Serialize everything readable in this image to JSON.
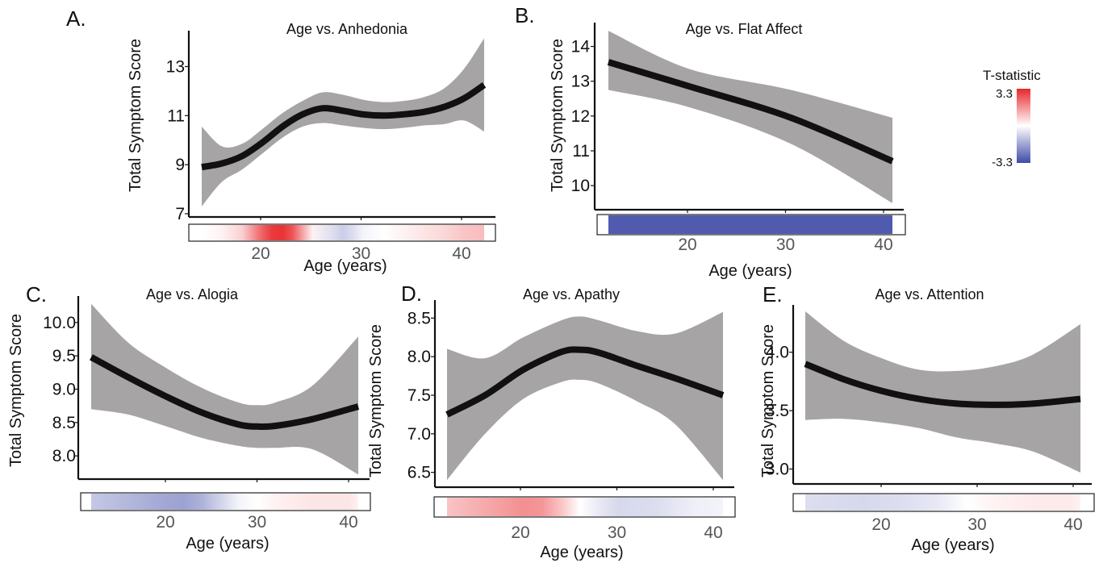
{
  "legend": {
    "title": "T-statistic",
    "max_label": "3.3",
    "min_label": "-3.3",
    "colors": {
      "high": "#e8262a",
      "mid": "#ffffff",
      "low": "#3f4aa6"
    }
  },
  "colors": {
    "ribbon": "#a6a4a4",
    "line": "#111111"
  },
  "chart_data": [
    {
      "panel": "A.",
      "type": "line",
      "title": "Age vs. Anhedonia",
      "ylabel": "Total Symptom Score",
      "xlabel": "Age (years)",
      "yticks": [
        "7",
        "9",
        "11",
        "13"
      ],
      "xticks": [
        "20",
        "30",
        "40"
      ],
      "xlim": [
        12,
        42
      ],
      "ylim": [
        7,
        14.2
      ],
      "x": [
        14,
        16,
        18,
        20,
        22,
        24,
        26,
        28,
        30,
        32,
        34,
        36,
        38,
        40,
        42
      ],
      "fit": [
        8.9,
        9.05,
        9.35,
        9.9,
        10.55,
        11.05,
        11.3,
        11.2,
        11.05,
        11.0,
        11.05,
        11.15,
        11.35,
        11.7,
        12.25
      ],
      "lower": [
        7.3,
        8.3,
        8.8,
        9.45,
        10.1,
        10.55,
        10.7,
        10.6,
        10.5,
        10.45,
        10.5,
        10.6,
        10.65,
        10.8,
        10.35
      ],
      "upper": [
        10.55,
        9.75,
        9.85,
        10.45,
        11.1,
        11.6,
        11.95,
        11.85,
        11.65,
        11.55,
        11.6,
        11.75,
        12.1,
        12.9,
        14.15
      ],
      "tstat": [
        [
          14,
          0
        ],
        [
          16,
          0.2
        ],
        [
          18,
          0.7
        ],
        [
          20,
          2.4
        ],
        [
          21,
          3.0
        ],
        [
          22,
          3.1
        ],
        [
          23,
          2.6
        ],
        [
          24,
          1.4
        ],
        [
          25,
          0.2
        ],
        [
          27,
          -0.6
        ],
        [
          28,
          -0.9
        ],
        [
          29,
          -0.6
        ],
        [
          30,
          -0.2
        ],
        [
          32,
          0
        ],
        [
          34,
          0.2
        ],
        [
          36,
          0.4
        ],
        [
          38,
          0.6
        ],
        [
          40,
          0.9
        ],
        [
          42,
          1.0
        ]
      ]
    },
    {
      "panel": "B.",
      "type": "line",
      "title": "Age vs. Flat Affect",
      "ylabel": "Total Symptom Score",
      "xlabel": "Age (years)",
      "yticks": [
        "10",
        "11",
        "12",
        "13",
        "14"
      ],
      "xticks": [
        "20",
        "30",
        "40"
      ],
      "xlim": [
        10.5,
        41.5
      ],
      "ylim": [
        9.4,
        14.5
      ],
      "x": [
        12,
        20,
        30,
        40
      ],
      "fit": [
        13.55,
        12.85,
        11.95,
        10.7
      ],
      "lower": [
        12.75,
        12.25,
        11.2,
        9.5
      ],
      "upper": [
        14.45,
        13.35,
        12.75,
        11.95
      ],
      "tstat": [
        [
          12,
          -3.0
        ],
        [
          40,
          -3.0
        ]
      ]
    },
    {
      "panel": "C.",
      "type": "line",
      "title": "Age vs. Alogia",
      "ylabel": "Total Symptom Score",
      "xlabel": "Age (years)",
      "yticks": [
        "8.0",
        "8.5",
        "9.0",
        "9.5",
        "10.0"
      ],
      "xticks": [
        "20",
        "30",
        "40"
      ],
      "xlim": [
        10.5,
        42
      ],
      "ylim": [
        7.7,
        10.3
      ],
      "x": [
        12,
        16,
        20,
        24,
        28,
        30,
        32,
        36,
        41
      ],
      "fit": [
        9.48,
        9.18,
        8.9,
        8.65,
        8.47,
        8.44,
        8.45,
        8.55,
        8.74
      ],
      "lower": [
        8.7,
        8.62,
        8.45,
        8.27,
        8.15,
        8.12,
        8.12,
        8.1,
        7.72
      ],
      "upper": [
        10.28,
        9.7,
        9.33,
        9.02,
        8.8,
        8.76,
        8.8,
        9.05,
        9.79
      ],
      "tstat": [
        [
          12,
          -1.0
        ],
        [
          16,
          -1.3
        ],
        [
          20,
          -1.6
        ],
        [
          22,
          -1.7
        ],
        [
          24,
          -1.4
        ],
        [
          26,
          -0.8
        ],
        [
          28,
          -0.2
        ],
        [
          30,
          0
        ],
        [
          32,
          0.2
        ],
        [
          36,
          0.4
        ],
        [
          40,
          0.4
        ],
        [
          41,
          0.2
        ]
      ]
    },
    {
      "panel": "D.",
      "type": "line",
      "title": "Age vs.  Apathy",
      "ylabel": "Total Symptom Score",
      "xlabel": "Age (years)",
      "yticks": [
        "6.5",
        "7.0",
        "7.5",
        "8.0",
        "8.5"
      ],
      "xticks": [
        "20",
        "30",
        "40"
      ],
      "xlim": [
        11,
        42
      ],
      "ylim": [
        6.35,
        8.65
      ],
      "x": [
        12,
        16,
        20,
        24,
        26,
        28,
        32,
        36,
        41
      ],
      "fit": [
        7.25,
        7.5,
        7.83,
        8.06,
        8.09,
        8.05,
        7.88,
        7.72,
        7.5
      ],
      "lower": [
        6.4,
        7.0,
        7.45,
        7.67,
        7.7,
        7.65,
        7.42,
        7.12,
        6.4
      ],
      "upper": [
        8.1,
        7.98,
        8.25,
        8.47,
        8.52,
        8.47,
        8.33,
        8.3,
        8.58
      ],
      "tstat": [
        [
          12,
          0.9
        ],
        [
          16,
          1.3
        ],
        [
          20,
          1.7
        ],
        [
          22,
          1.6
        ],
        [
          24,
          0.9
        ],
        [
          26,
          0
        ],
        [
          28,
          -0.4
        ],
        [
          30,
          -0.7
        ],
        [
          34,
          -0.6
        ],
        [
          38,
          -0.3
        ],
        [
          41,
          -0.2
        ]
      ]
    },
    {
      "panel": "E.",
      "type": "line",
      "title": "Age vs. Attention",
      "ylabel": "Total Symptom Score",
      "xlabel": "Age (years)",
      "yticks": [
        "3.0",
        "3.5",
        "4.0"
      ],
      "xticks": [
        "20",
        "30",
        "40"
      ],
      "xlim": [
        11,
        42
      ],
      "ylim": [
        2.9,
        4.35
      ],
      "x": [
        12,
        16,
        20,
        24,
        28,
        32,
        36,
        41
      ],
      "fit": [
        3.9,
        3.77,
        3.67,
        3.6,
        3.56,
        3.55,
        3.56,
        3.6
      ],
      "lower": [
        3.42,
        3.43,
        3.4,
        3.35,
        3.27,
        3.22,
        3.15,
        2.97
      ],
      "upper": [
        4.35,
        4.1,
        3.95,
        3.85,
        3.84,
        3.88,
        3.98,
        4.24
      ],
      "tstat": [
        [
          12,
          -0.6
        ],
        [
          18,
          -0.7
        ],
        [
          22,
          -0.6
        ],
        [
          26,
          -0.4
        ],
        [
          29,
          0
        ],
        [
          32,
          0.2
        ],
        [
          36,
          0.3
        ],
        [
          40,
          0.3
        ],
        [
          41,
          0.2
        ]
      ]
    }
  ]
}
